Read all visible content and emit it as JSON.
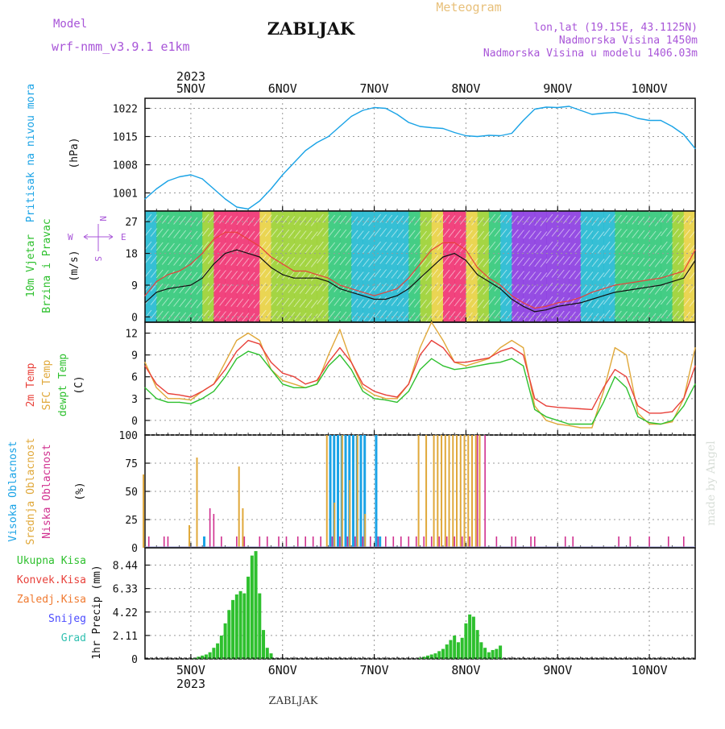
{
  "header": {
    "model_label": "Model",
    "model_name": "wrf-nmm_v3.9.1  e1km",
    "station_title": "ZABLJAK",
    "meteogram_label": "Meteogram",
    "lonlat": "lon,lat (19.15E, 43.1125N)",
    "elevation": "Nadmorska Visina 1450m",
    "model_elevation": "Nadmorska Visina u modelu 1406.03m"
  },
  "footer": {
    "station": "ZABLJAK",
    "watermark": "made by Angel"
  },
  "colors": {
    "pressure": "#1aa3e6",
    "temp2m": "#e8413a",
    "sfc": "#e0a83a",
    "dewpt": "#2ec02e",
    "rain_total": "#2ec02e",
    "conv": "#e8413a",
    "freezing": "#f07a30",
    "snow": "#4b4bff",
    "hail": "#30c0b0",
    "cloud_high": "#1aa3e6",
    "cloud_mid": "#e0a83a",
    "cloud_low": "#d0308f",
    "title_purple": "#a855d8",
    "meteogram_gold": "#e8c07a"
  },
  "chart_data": [
    {
      "type": "line",
      "panel": "pressure",
      "ylabels": [
        "Pritisak na nivou mora",
        "(hPa)"
      ],
      "ylim": [
        996.5,
        1024.5
      ],
      "yticks": [
        1001,
        1008,
        1015,
        1022
      ],
      "x": [
        0,
        3,
        6,
        9,
        12,
        15,
        18,
        21,
        24,
        27,
        30,
        33,
        36,
        39,
        42,
        45,
        48,
        51,
        54,
        57,
        60,
        63,
        66,
        69,
        72,
        75,
        78,
        81,
        84,
        87,
        90,
        93,
        96,
        99,
        102,
        105,
        108,
        111,
        114,
        117,
        120,
        123,
        126,
        129,
        132,
        135,
        138,
        141,
        144
      ],
      "values": [
        999.5,
        1002,
        1004,
        1005,
        1005.5,
        1004.5,
        1002,
        999.5,
        997.5,
        997,
        999,
        1002,
        1005.5,
        1008.5,
        1011.5,
        1013.5,
        1015,
        1017.5,
        1020,
        1021.5,
        1022.2,
        1022,
        1020.5,
        1018.5,
        1017.5,
        1017.2,
        1017,
        1016,
        1015.2,
        1015,
        1015.3,
        1015.2,
        1015.8,
        1019,
        1021.8,
        1022.3,
        1022.2,
        1022.5,
        1021.5,
        1020.5,
        1020.8,
        1021,
        1020.5,
        1019.5,
        1019,
        1019,
        1017.5,
        1015.5,
        1012
      ]
    },
    {
      "type": "line",
      "panel": "wind",
      "ylabels": [
        "10m Vjetar",
        "Brzina i Pravac",
        "(m/s)"
      ],
      "compass": {
        "n": "N",
        "s": "S",
        "e": "E",
        "w": "W"
      },
      "ylim": [
        -1.5,
        30
      ],
      "yticks": [
        0,
        9,
        18,
        27
      ],
      "series": [
        {
          "x": [
            0,
            3,
            6,
            9,
            12,
            15,
            18,
            21,
            24,
            27,
            30,
            33,
            36,
            39,
            42,
            45,
            48,
            51,
            54,
            57,
            60,
            63,
            66,
            69,
            72,
            75,
            78,
            81,
            84,
            87,
            90,
            93,
            96,
            99,
            102,
            105,
            108,
            111,
            114,
            117,
            120,
            123,
            126,
            129,
            132,
            135,
            138,
            141,
            144
          ],
          "values": [
            4,
            7,
            8,
            8.5,
            9,
            11,
            15,
            18,
            19,
            18,
            17,
            14,
            12,
            11,
            11,
            11,
            10,
            8,
            7,
            6,
            5,
            5,
            6,
            8,
            11,
            14,
            17,
            18,
            16,
            12,
            10,
            8,
            5,
            3,
            1.5,
            2,
            3,
            3.5,
            4,
            5,
            6,
            7,
            7.5,
            8,
            8.5,
            9,
            10,
            11,
            16
          ]
        },
        {
          "x": [
            0,
            3,
            6,
            9,
            12,
            15,
            18,
            21,
            24,
            27,
            30,
            33,
            36,
            39,
            42,
            45,
            48,
            51,
            54,
            57,
            60,
            63,
            66,
            69,
            72,
            75,
            78,
            81,
            84,
            87,
            90,
            93,
            96,
            99,
            102,
            105,
            108,
            111,
            114,
            117,
            120,
            123,
            126,
            129,
            132,
            135,
            138,
            141,
            144
          ],
          "values": [
            6,
            10,
            12,
            13,
            15,
            18,
            22,
            24,
            24,
            22,
            20,
            17,
            15,
            13,
            13,
            12,
            11,
            9,
            8,
            7,
            6,
            7,
            8,
            11,
            15,
            19,
            21,
            21,
            19,
            14,
            11,
            9,
            6,
            4,
            2.5,
            3,
            4,
            4.5,
            5.5,
            7,
            8,
            9,
            9.5,
            10,
            10.5,
            11,
            12,
            13,
            19
          ]
        }
      ]
    },
    {
      "type": "line",
      "panel": "temperature",
      "ylabels": [
        "2m Temp",
        "SFC Temp",
        "dewpt Temp",
        "(C)"
      ],
      "ylim": [
        -2,
        13.5
      ],
      "yticks": [
        0,
        3,
        6,
        9,
        12
      ],
      "x": [
        0,
        3,
        6,
        9,
        12,
        15,
        18,
        21,
        24,
        27,
        30,
        33,
        36,
        39,
        42,
        45,
        48,
        51,
        54,
        57,
        60,
        63,
        66,
        69,
        72,
        75,
        78,
        81,
        84,
        87,
        90,
        93,
        96,
        99,
        102,
        105,
        108,
        111,
        114,
        117,
        120,
        123,
        126,
        129,
        132,
        135,
        138,
        141,
        144
      ],
      "series": [
        {
          "name": "2m Temp",
          "values": [
            7.5,
            5,
            3.7,
            3.5,
            3.2,
            4,
            5,
            7,
            9.5,
            11,
            10.5,
            8,
            6.5,
            6,
            5,
            5.5,
            8,
            10,
            8,
            5,
            4,
            3.5,
            3.2,
            5,
            9,
            11,
            10,
            8,
            8,
            8.3,
            8.6,
            9.5,
            10,
            9,
            3,
            2,
            1.8,
            1.7,
            1.6,
            1.5,
            4.5,
            7,
            6,
            2,
            1,
            1,
            1.2,
            3,
            7.5
          ]
        },
        {
          "name": "SFC Temp",
          "values": [
            8,
            4.5,
            3,
            3,
            2.8,
            4,
            5,
            8,
            11,
            12,
            11,
            7,
            5.5,
            5,
            4.5,
            5,
            9,
            12.5,
            8,
            4.5,
            3.5,
            3,
            3,
            5,
            10,
            13.5,
            11,
            8,
            7.5,
            8,
            8.5,
            10,
            11,
            10,
            2,
            0,
            -0.5,
            -0.7,
            -1,
            -1,
            4,
            10,
            9,
            1,
            -0.5,
            -0.5,
            -0.2,
            3,
            10
          ]
        },
        {
          "name": "dewpt Temp",
          "values": [
            4.5,
            3,
            2.5,
            2.5,
            2.3,
            3,
            4,
            6,
            8.5,
            9.5,
            9,
            7,
            5,
            4.5,
            4.5,
            5,
            7.5,
            9,
            7,
            4,
            3,
            2.8,
            2.5,
            4,
            7,
            8.5,
            7.5,
            7,
            7.2,
            7.5,
            7.8,
            8,
            8.5,
            7.5,
            1.5,
            0.5,
            0,
            -0.5,
            -0.5,
            -0.5,
            2.5,
            6,
            4.5,
            0.5,
            -0.3,
            -0.5,
            0,
            2,
            5
          ]
        }
      ]
    },
    {
      "type": "bar",
      "panel": "clouds",
      "ylabels": [
        "Visoka Oblacnost",
        "Srednja Oblacnost",
        "Niska Oblacnost",
        "(%)"
      ],
      "ylim": [
        0,
        100
      ],
      "yticks": [
        0,
        25,
        50,
        75,
        100
      ],
      "series": [
        {
          "name": "Visoka Oblacnost",
          "x": [
            15,
            48,
            49,
            50,
            51,
            52,
            53,
            54,
            55,
            56,
            57,
            60,
            61
          ],
          "values": [
            10,
            100,
            100,
            100,
            100,
            100,
            100,
            100,
            100,
            100,
            100,
            100,
            10
          ]
        },
        {
          "name": "Srednja Oblacnost",
          "x": [
            0,
            12,
            14,
            25,
            26,
            48,
            50,
            52,
            54,
            56,
            58,
            72,
            74,
            76,
            77,
            78,
            79,
            80,
            81,
            82,
            83,
            84,
            85,
            86,
            87,
            88
          ],
          "values": [
            65,
            20,
            80,
            72,
            35,
            100,
            40,
            100,
            60,
            100,
            30,
            100,
            100,
            100,
            100,
            100,
            100,
            100,
            100,
            100,
            100,
            100,
            100,
            100,
            100,
            100
          ]
        },
        {
          "name": "Niska Oblacnost",
          "x": [
            1,
            5,
            6,
            17,
            18,
            20,
            24,
            26,
            30,
            32,
            35,
            37,
            40,
            42,
            44,
            46,
            49,
            51,
            53,
            55,
            57,
            59,
            61,
            63,
            65,
            67,
            69,
            71,
            73,
            75,
            77,
            79,
            81,
            83,
            85,
            87,
            89,
            92,
            96,
            97,
            101,
            102,
            110,
            112,
            124,
            127,
            132,
            137,
            141
          ],
          "values": [
            10,
            10,
            10,
            35,
            30,
            10,
            10,
            10,
            10,
            10,
            10,
            10,
            10,
            10,
            10,
            10,
            10,
            10,
            10,
            10,
            10,
            10,
            10,
            10,
            10,
            10,
            10,
            10,
            10,
            10,
            10,
            10,
            10,
            10,
            10,
            100,
            100,
            10,
            10,
            10,
            10,
            10,
            10,
            10,
            10,
            10,
            10,
            10,
            10
          ]
        }
      ]
    },
    {
      "type": "bar",
      "panel": "precip",
      "ylabels": [
        "1hr Precip (mm)"
      ],
      "legend": [
        "Ukupna Kisa",
        "Konvek.Kisa",
        "Zaledj.Kisa",
        "Snijeg",
        "Grad"
      ],
      "ylim": [
        0,
        10
      ],
      "yticks": [
        0,
        2.11,
        4.22,
        6.33,
        8.44
      ],
      "x": [
        13,
        14,
        15,
        16,
        17,
        18,
        19,
        20,
        21,
        22,
        23,
        24,
        25,
        26,
        27,
        28,
        29,
        30,
        31,
        32,
        33,
        72,
        73,
        74,
        75,
        76,
        77,
        78,
        79,
        80,
        81,
        82,
        83,
        84,
        85,
        86,
        87,
        88,
        89,
        90,
        91,
        92,
        93
      ],
      "values": [
        0.1,
        0.2,
        0.3,
        0.4,
        0.6,
        1,
        1.4,
        2.1,
        3.2,
        4.4,
        5.3,
        5.8,
        6.1,
        5.9,
        7.4,
        9.3,
        9.7,
        5.9,
        2.6,
        1,
        0.5,
        0.1,
        0.2,
        0.3,
        0.4,
        0.5,
        0.7,
        0.9,
        1.3,
        1.7,
        2.1,
        1.5,
        1.9,
        3.2,
        4,
        3.8,
        2.6,
        1.5,
        1,
        0.6,
        0.8,
        0.9,
        1.2
      ]
    }
  ],
  "x_axis": {
    "year": "2023",
    "day_labels": [
      "5NOV",
      "6NOV",
      "7NOV",
      "8NOV",
      "9NOV",
      "10NOV"
    ]
  }
}
